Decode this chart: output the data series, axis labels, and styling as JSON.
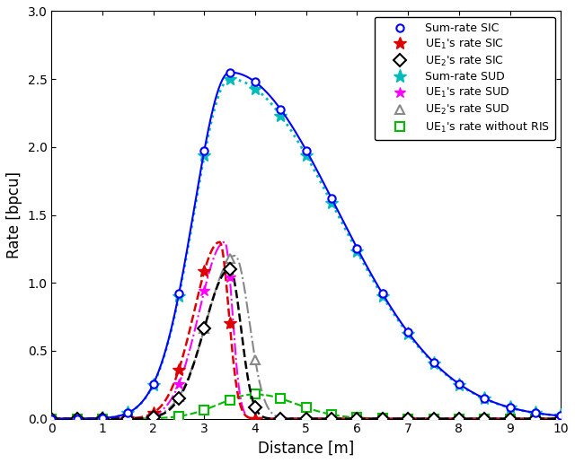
{
  "title": "",
  "xlabel": "Distance [m]",
  "ylabel": "Rate [bpcu]",
  "xlim": [
    0,
    10
  ],
  "ylim": [
    0,
    3
  ],
  "xticks": [
    0,
    1,
    2,
    3,
    4,
    5,
    6,
    7,
    8,
    9,
    10
  ],
  "yticks": [
    0,
    0.5,
    1.0,
    1.5,
    2.0,
    2.5,
    3.0
  ],
  "series": [
    {
      "label": "Sum-rate SIC",
      "color": "#0000FF",
      "linestyle": "-",
      "marker": "o",
      "markersize": 6,
      "linewidth": 1.5,
      "markerfacecolor": "white",
      "markeredgecolor": "#0000FF",
      "markeredgewidth": 1.5,
      "zorder": 5
    },
    {
      "label": "UE$_1$'s rate SIC",
      "color": "#DD0000",
      "linestyle": "--",
      "marker": "*",
      "markersize": 10,
      "linewidth": 1.8,
      "markerfacecolor": "#DD0000",
      "markeredgecolor": "#DD0000",
      "markeredgewidth": 1.0,
      "zorder": 4
    },
    {
      "label": "UE$_2$'s rate SIC",
      "color": "#000000",
      "linestyle": "--",
      "marker": "D",
      "markersize": 7,
      "linewidth": 1.8,
      "markerfacecolor": "white",
      "markeredgecolor": "#000000",
      "markeredgewidth": 1.5,
      "zorder": 4
    },
    {
      "label": "Sum-rate SUD",
      "color": "#00BBBB",
      "linestyle": ":",
      "marker": "*",
      "markersize": 11,
      "linewidth": 2.0,
      "markerfacecolor": "#00BBBB",
      "markeredgecolor": "#00BBBB",
      "markeredgewidth": 1.0,
      "zorder": 3
    },
    {
      "label": "UE$_1$'s rate SUD",
      "color": "#FF00FF",
      "linestyle": "-.",
      "marker": "*",
      "markersize": 9,
      "linewidth": 1.5,
      "markerfacecolor": "#FF00FF",
      "markeredgecolor": "#FF00FF",
      "markeredgewidth": 1.0,
      "zorder": 3
    },
    {
      "label": "UE$_2$'s rate SUD",
      "color": "#888888",
      "linestyle": "-.",
      "marker": "^",
      "markersize": 7,
      "linewidth": 1.5,
      "markerfacecolor": "white",
      "markeredgecolor": "#888888",
      "markeredgewidth": 1.5,
      "zorder": 2
    },
    {
      "label": "UE$_1$'s rate without RIS",
      "color": "#00BB00",
      "linestyle": "--",
      "marker": "s",
      "markersize": 7,
      "linewidth": 1.5,
      "markerfacecolor": "white",
      "markeredgecolor": "#00BB00",
      "markeredgewidth": 1.5,
      "zorder": 2
    }
  ],
  "background_color": "#ffffff",
  "legend_loc": "upper right"
}
